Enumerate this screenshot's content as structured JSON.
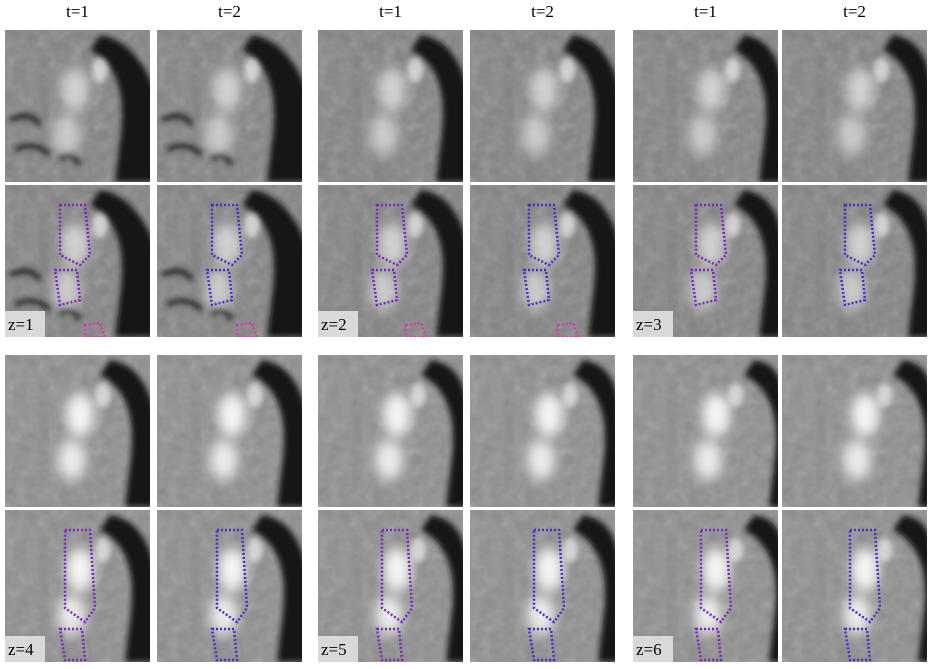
{
  "column_headers": [
    "t=1",
    "t=2",
    "t=1",
    "t=2",
    "t=1",
    "t=2"
  ],
  "slice_labels": [
    "z=1",
    "z=2",
    "z=3",
    "z=4",
    "z=5",
    "z=6"
  ]
}
